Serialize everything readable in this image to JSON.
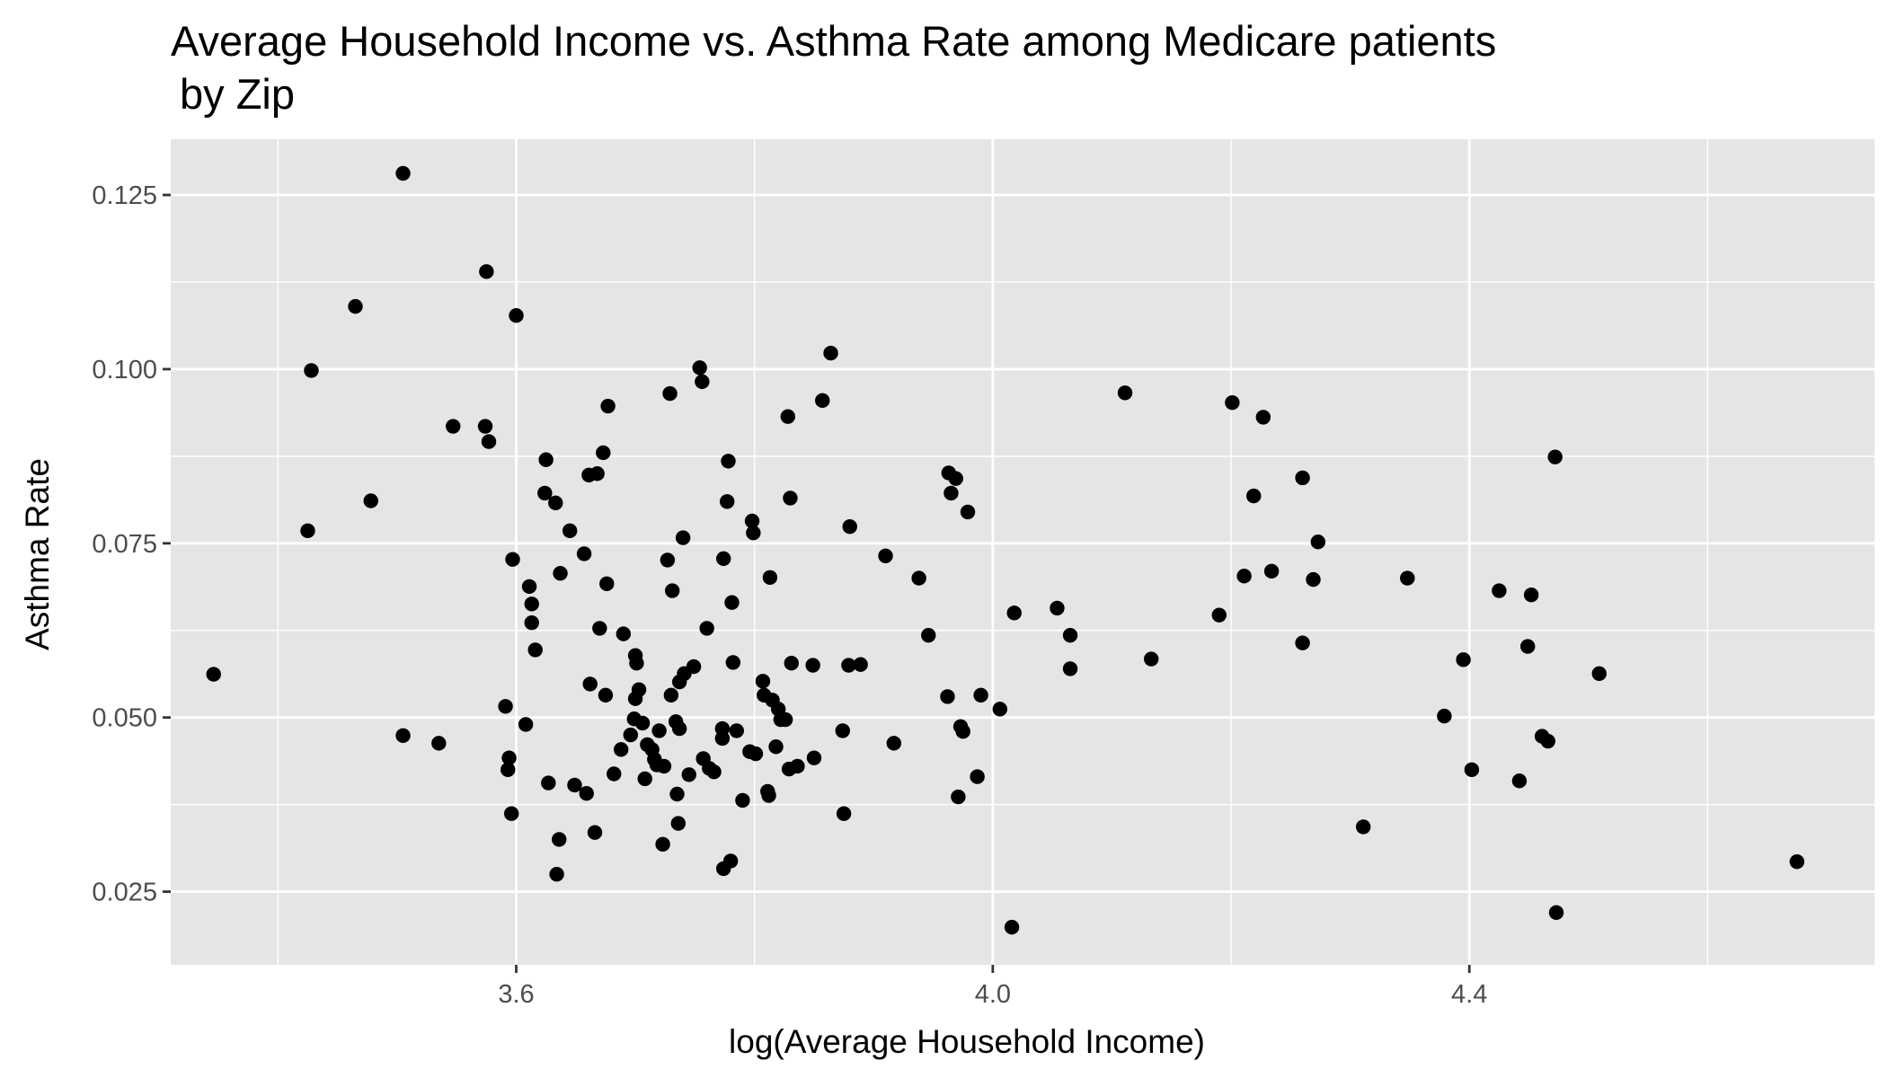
{
  "chart_data": {
    "type": "scatter",
    "title": "Average Household Income vs. Asthma Rate among Medicare patients",
    "title_line2": "by Zip",
    "xlabel": "log(Average Household Income)",
    "ylabel": "Asthma Rate",
    "xlim": [
      3.31,
      4.74
    ],
    "ylim": [
      0.0145,
      0.133
    ],
    "x_ticks": [
      3.6,
      4.0,
      4.4
    ],
    "x_tick_labels": [
      "3.6",
      "4.0",
      "4.4"
    ],
    "x_minor_ticks": [
      3.4,
      3.8,
      4.2,
      4.6
    ],
    "y_ticks": [
      0.025,
      0.05,
      0.075,
      0.1,
      0.125
    ],
    "y_tick_labels": [
      "0.025",
      "0.050",
      "0.075",
      "0.100",
      "0.125"
    ],
    "y_minor_ticks": [
      0.0375,
      0.0625,
      0.0875,
      0.1125
    ],
    "grid": true,
    "legend": "none",
    "colors": {
      "panel": "#e5e5e5",
      "grid": "#ffffff",
      "point": "#000000",
      "tick_label": "#4d4d4d"
    },
    "points": [
      [
        3.346,
        0.0562
      ],
      [
        3.425,
        0.0768
      ],
      [
        3.428,
        0.0998
      ],
      [
        3.465,
        0.109
      ],
      [
        3.478,
        0.0811
      ],
      [
        3.505,
        0.1281
      ],
      [
        3.505,
        0.0474
      ],
      [
        3.535,
        0.0463
      ],
      [
        3.547,
        0.0918
      ],
      [
        3.574,
        0.0918
      ],
      [
        3.575,
        0.114
      ],
      [
        3.577,
        0.0896
      ],
      [
        3.591,
        0.0516
      ],
      [
        3.593,
        0.0425
      ],
      [
        3.594,
        0.0442
      ],
      [
        3.596,
        0.0362
      ],
      [
        3.597,
        0.0727
      ],
      [
        3.6,
        0.1077
      ],
      [
        3.608,
        0.049
      ],
      [
        3.611,
        0.0688
      ],
      [
        3.613,
        0.0636
      ],
      [
        3.613,
        0.0663
      ],
      [
        3.616,
        0.0597
      ],
      [
        3.624,
        0.0822
      ],
      [
        3.625,
        0.087
      ],
      [
        3.627,
        0.0406
      ],
      [
        3.633,
        0.0808
      ],
      [
        3.634,
        0.0275
      ],
      [
        3.636,
        0.0325
      ],
      [
        3.637,
        0.0707
      ],
      [
        3.645,
        0.0768
      ],
      [
        3.649,
        0.0403
      ],
      [
        3.657,
        0.0735
      ],
      [
        3.659,
        0.0391
      ],
      [
        3.661,
        0.0848
      ],
      [
        3.662,
        0.0548
      ],
      [
        3.666,
        0.0335
      ],
      [
        3.668,
        0.085
      ],
      [
        3.67,
        0.0628
      ],
      [
        3.673,
        0.088
      ],
      [
        3.675,
        0.0532
      ],
      [
        3.676,
        0.0692
      ],
      [
        3.677,
        0.0947
      ],
      [
        3.682,
        0.0419
      ],
      [
        3.688,
        0.0454
      ],
      [
        3.69,
        0.062
      ],
      [
        3.696,
        0.0475
      ],
      [
        3.699,
        0.0498
      ],
      [
        3.7,
        0.0589
      ],
      [
        3.7,
        0.0527
      ],
      [
        3.701,
        0.0578
      ],
      [
        3.703,
        0.054
      ],
      [
        3.706,
        0.0492
      ],
      [
        3.708,
        0.0412
      ],
      [
        3.71,
        0.0461
      ],
      [
        3.714,
        0.0454
      ],
      [
        3.716,
        0.044
      ],
      [
        3.718,
        0.0432
      ],
      [
        3.72,
        0.0481
      ],
      [
        3.723,
        0.0318
      ],
      [
        3.724,
        0.043
      ],
      [
        3.727,
        0.0726
      ],
      [
        3.729,
        0.0965
      ],
      [
        3.73,
        0.0532
      ],
      [
        3.731,
        0.0682
      ],
      [
        3.734,
        0.0494
      ],
      [
        3.735,
        0.039
      ],
      [
        3.736,
        0.0348
      ],
      [
        3.737,
        0.0484
      ],
      [
        3.737,
        0.0551
      ],
      [
        3.74,
        0.0758
      ],
      [
        3.741,
        0.0563
      ],
      [
        3.745,
        0.0418
      ],
      [
        3.749,
        0.0573
      ],
      [
        3.754,
        0.1002
      ],
      [
        3.756,
        0.0982
      ],
      [
        3.757,
        0.0441
      ],
      [
        3.76,
        0.0628
      ],
      [
        3.762,
        0.0427
      ],
      [
        3.766,
        0.0422
      ],
      [
        3.773,
        0.047
      ],
      [
        3.773,
        0.0484
      ],
      [
        3.774,
        0.0283
      ],
      [
        3.774,
        0.0728
      ],
      [
        3.777,
        0.081
      ],
      [
        3.778,
        0.0868
      ],
      [
        3.78,
        0.0294
      ],
      [
        3.781,
        0.0665
      ],
      [
        3.782,
        0.0579
      ],
      [
        3.785,
        0.0481
      ],
      [
        3.79,
        0.0381
      ],
      [
        3.796,
        0.0451
      ],
      [
        3.798,
        0.0782
      ],
      [
        3.799,
        0.0765
      ],
      [
        3.801,
        0.0448
      ],
      [
        3.807,
        0.0552
      ],
      [
        3.808,
        0.0532
      ],
      [
        3.811,
        0.0394
      ],
      [
        3.812,
        0.0388
      ],
      [
        3.813,
        0.0701
      ],
      [
        3.815,
        0.0525
      ],
      [
        3.818,
        0.0458
      ],
      [
        3.82,
        0.0512
      ],
      [
        3.822,
        0.0497
      ],
      [
        3.826,
        0.0497
      ],
      [
        3.828,
        0.0932
      ],
      [
        3.829,
        0.0426
      ],
      [
        3.83,
        0.0815
      ],
      [
        3.831,
        0.0578
      ],
      [
        3.836,
        0.043
      ],
      [
        3.849,
        0.0575
      ],
      [
        3.85,
        0.0442
      ],
      [
        3.857,
        0.0955
      ],
      [
        3.864,
        0.1023
      ],
      [
        3.874,
        0.0481
      ],
      [
        3.875,
        0.0362
      ],
      [
        3.879,
        0.0575
      ],
      [
        3.88,
        0.0774
      ],
      [
        3.889,
        0.0576
      ],
      [
        3.91,
        0.0732
      ],
      [
        3.917,
        0.0463
      ],
      [
        3.938,
        0.07
      ],
      [
        3.946,
        0.0618
      ],
      [
        3.962,
        0.053
      ],
      [
        3.963,
        0.0851
      ],
      [
        3.965,
        0.0822
      ],
      [
        3.969,
        0.0843
      ],
      [
        3.971,
        0.0386
      ],
      [
        3.973,
        0.0487
      ],
      [
        3.975,
        0.048
      ],
      [
        3.979,
        0.0795
      ],
      [
        3.987,
        0.0415
      ],
      [
        3.99,
        0.0532
      ],
      [
        4.006,
        0.0512
      ],
      [
        4.016,
        0.0199
      ],
      [
        4.018,
        0.065
      ],
      [
        4.054,
        0.0657
      ],
      [
        4.065,
        0.057
      ],
      [
        4.065,
        0.0618
      ],
      [
        4.111,
        0.0966
      ],
      [
        4.133,
        0.0584
      ],
      [
        4.19,
        0.0647
      ],
      [
        4.201,
        0.0952
      ],
      [
        4.211,
        0.0703
      ],
      [
        4.219,
        0.0818
      ],
      [
        4.227,
        0.0931
      ],
      [
        4.234,
        0.071
      ],
      [
        4.26,
        0.0607
      ],
      [
        4.26,
        0.0844
      ],
      [
        4.269,
        0.0698
      ],
      [
        4.273,
        0.0752
      ],
      [
        4.311,
        0.0343
      ],
      [
        4.348,
        0.07
      ],
      [
        4.379,
        0.0502
      ],
      [
        4.395,
        0.0583
      ],
      [
        4.402,
        0.0425
      ],
      [
        4.425,
        0.0682
      ],
      [
        4.442,
        0.0409
      ],
      [
        4.449,
        0.0602
      ],
      [
        4.452,
        0.0676
      ],
      [
        4.461,
        0.0473
      ],
      [
        4.466,
        0.0466
      ],
      [
        4.472,
        0.0874
      ],
      [
        4.473,
        0.022
      ],
      [
        4.509,
        0.0563
      ],
      [
        4.675,
        0.0293
      ]
    ]
  }
}
